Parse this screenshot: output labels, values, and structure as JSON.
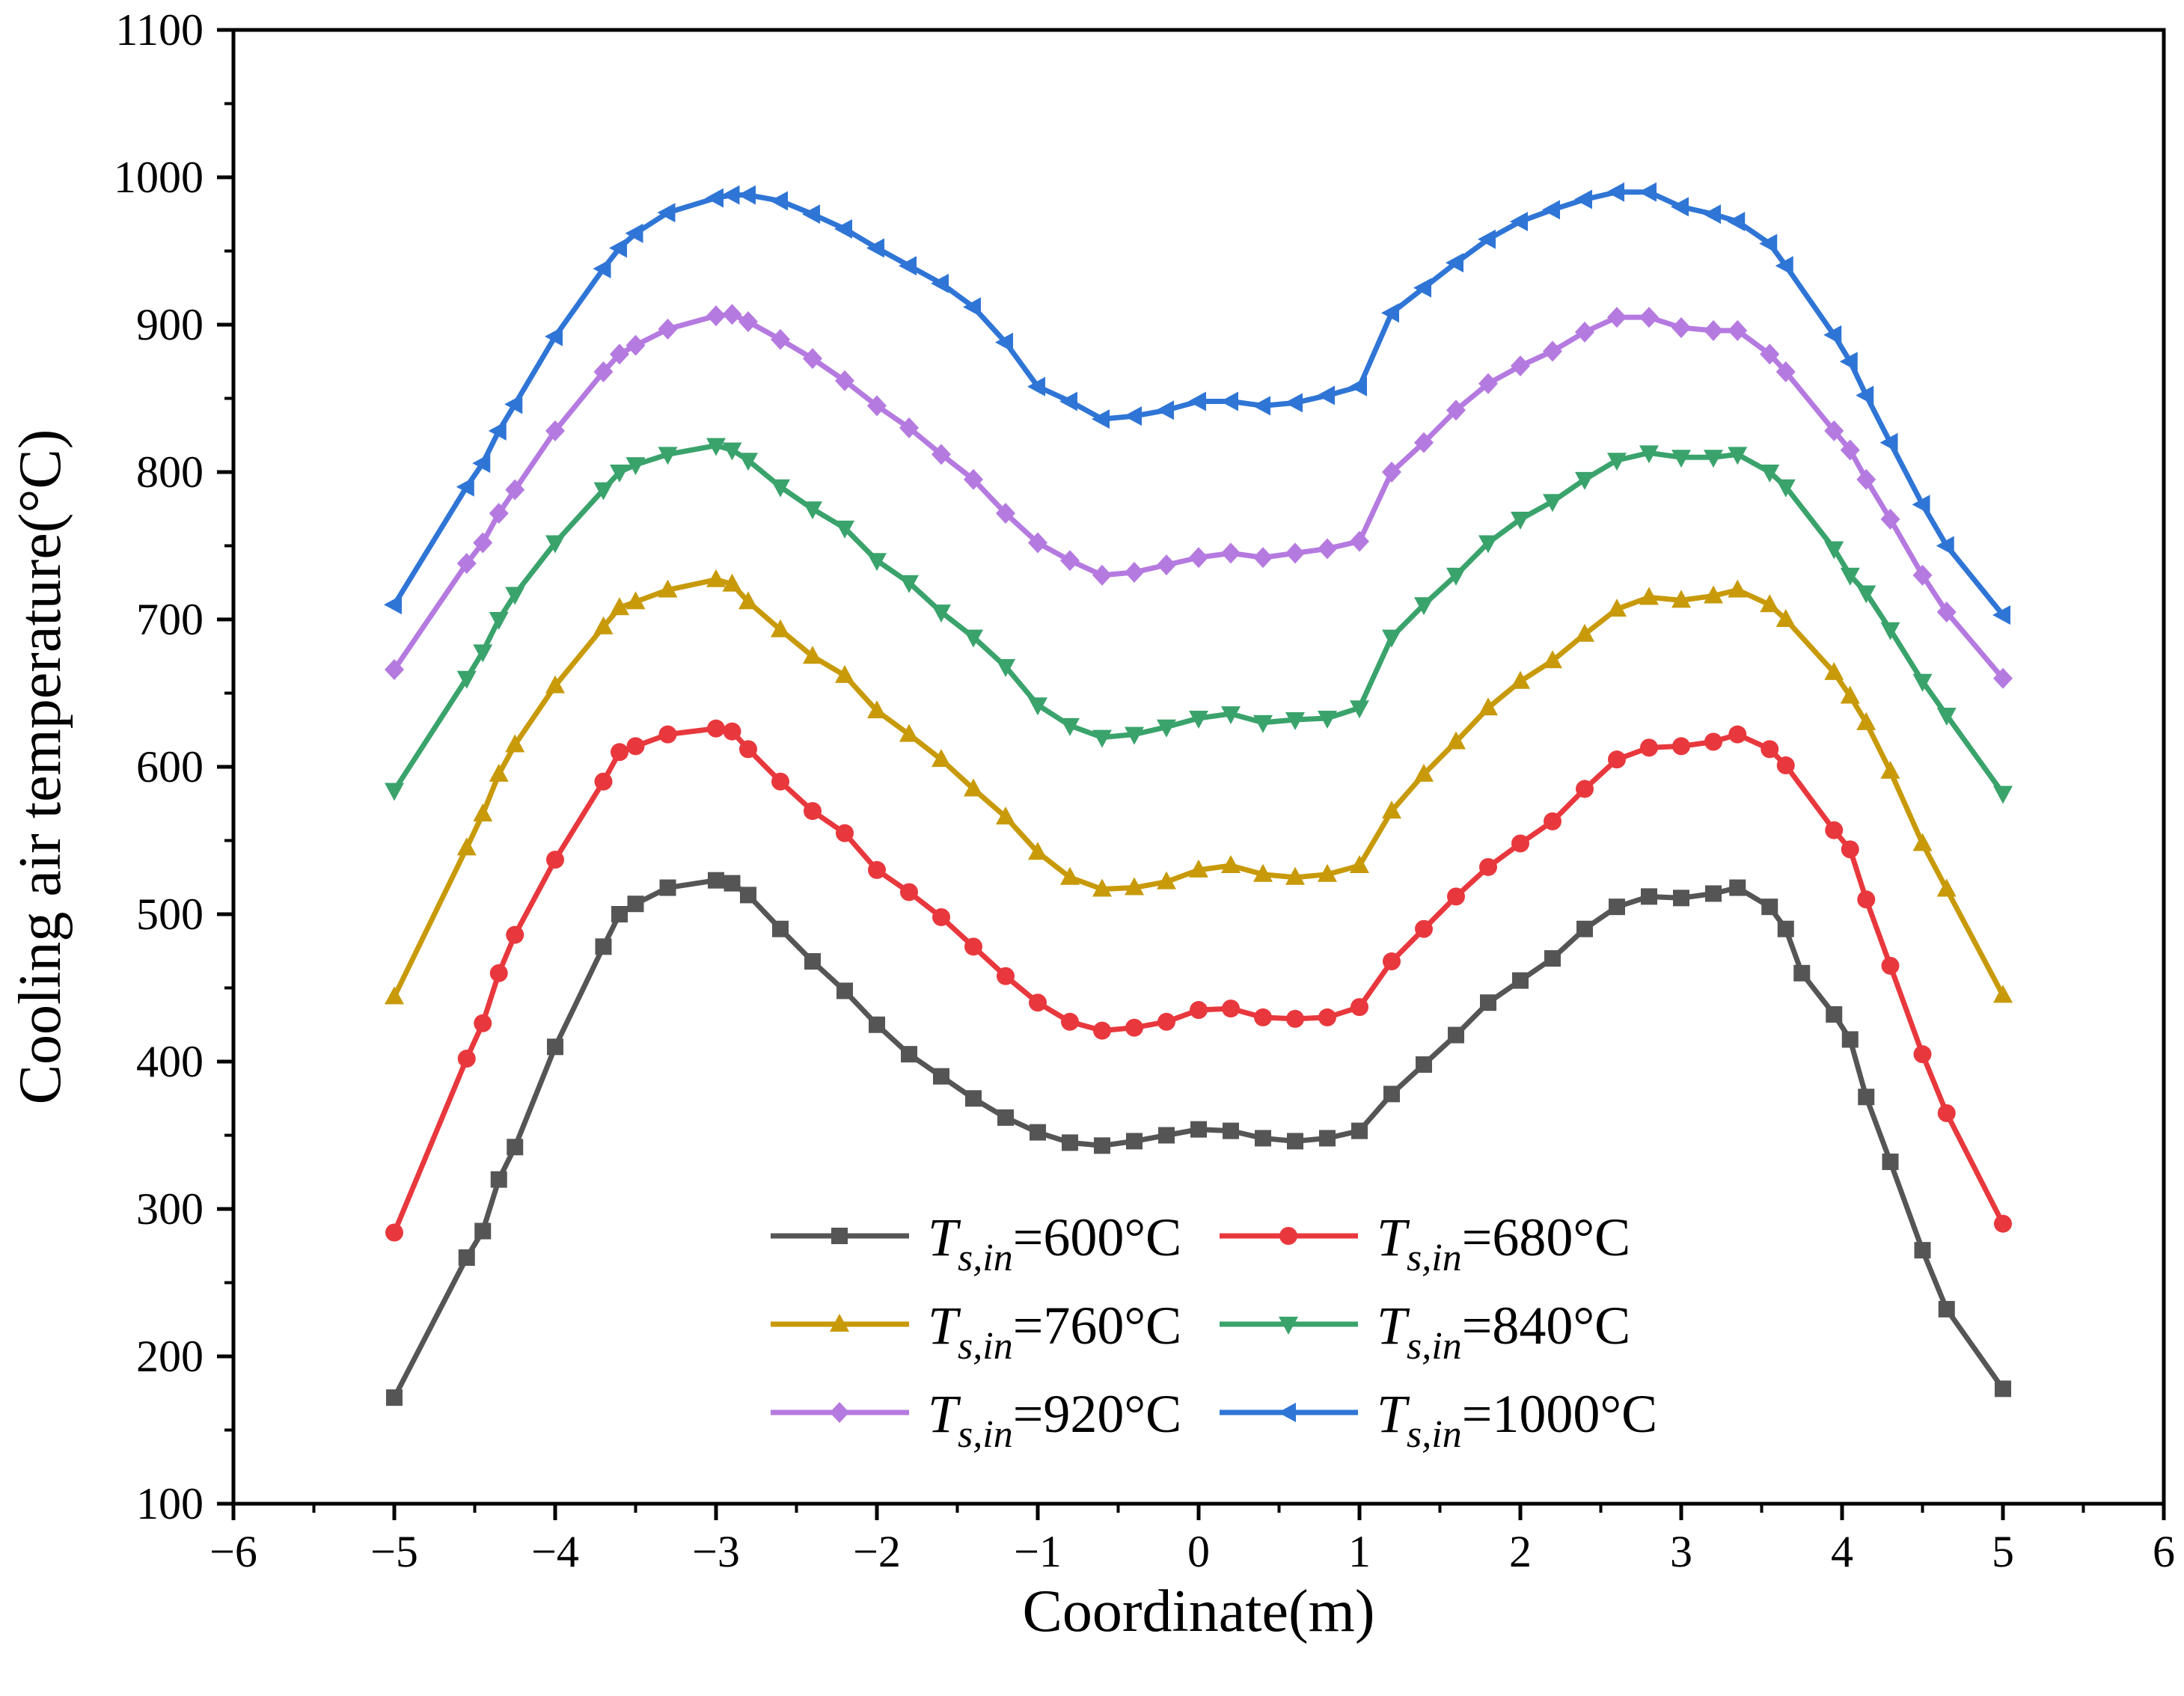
{
  "chart_data": {
    "type": "line",
    "title": "",
    "xlabel": "Coordinate(m)",
    "ylabel": "Cooling air temperature(°C)",
    "xlim": [
      -6,
      6
    ],
    "ylim": [
      100,
      1100
    ],
    "xticks": [
      -6,
      -5,
      -4,
      -3,
      -2,
      -1,
      0,
      1,
      2,
      3,
      4,
      5,
      6
    ],
    "xtick_labels": [
      "−6",
      "−5",
      "−4",
      "−3",
      "−2",
      "−1",
      "0",
      "1",
      "2",
      "3",
      "4",
      "5",
      "6"
    ],
    "yticks": [
      100,
      200,
      300,
      400,
      500,
      600,
      700,
      800,
      900,
      1000,
      1100
    ],
    "ytick_labels": [
      "100",
      "200",
      "300",
      "400",
      "500",
      "600",
      "700",
      "800",
      "900",
      "1000",
      "1100"
    ],
    "legend_position": "lower-center, inside plot, 2 columns",
    "series": [
      {
        "name": "600°C",
        "legend_prefix": "T",
        "legend_subscript": "s,in",
        "legend_value": "=600°C",
        "color": "#555555",
        "marker": "square",
        "x": [
          -5.0,
          -4.55,
          -4.45,
          -4.35,
          -4.25,
          -4.0,
          -3.7,
          -3.6,
          -3.5,
          -3.3,
          -3.0,
          -2.9,
          -2.8,
          -2.6,
          -2.4,
          -2.2,
          -2.0,
          -1.8,
          -1.6,
          -1.4,
          -1.2,
          -1.0,
          -0.8,
          -0.6,
          -0.4,
          -0.2,
          0.0,
          0.2,
          0.4,
          0.6,
          0.8,
          1.0,
          1.2,
          1.4,
          1.6,
          1.8,
          2.0,
          2.2,
          2.4,
          2.6,
          2.8,
          3.0,
          3.2,
          3.35,
          3.55,
          3.65,
          3.75,
          3.95,
          4.05,
          4.15,
          4.3,
          4.5,
          4.65,
          5.0
        ],
        "y": [
          172,
          267,
          285,
          320,
          342,
          410,
          478,
          500,
          507,
          518,
          523,
          521,
          513,
          490,
          468,
          448,
          425,
          405,
          390,
          375,
          362,
          352,
          345,
          343,
          346,
          350,
          354,
          353,
          348,
          346,
          348,
          353,
          378,
          398,
          418,
          440,
          455,
          470,
          490,
          505,
          512,
          511,
          514,
          518,
          505,
          490,
          460,
          432,
          415,
          376,
          332,
          272,
          232,
          178
        ]
      },
      {
        "name": "680°C",
        "legend_prefix": "T",
        "legend_subscript": "s,in",
        "legend_value": "=680°C",
        "color": "#e8383d",
        "marker": "circle",
        "x": [
          -5.0,
          -4.55,
          -4.45,
          -4.35,
          -4.25,
          -4.0,
          -3.7,
          -3.6,
          -3.5,
          -3.3,
          -3.0,
          -2.9,
          -2.8,
          -2.6,
          -2.4,
          -2.2,
          -2.0,
          -1.8,
          -1.6,
          -1.4,
          -1.2,
          -1.0,
          -0.8,
          -0.6,
          -0.4,
          -0.2,
          0.0,
          0.2,
          0.4,
          0.6,
          0.8,
          1.0,
          1.2,
          1.4,
          1.6,
          1.8,
          2.0,
          2.2,
          2.4,
          2.6,
          2.8,
          3.0,
          3.2,
          3.35,
          3.55,
          3.65,
          3.95,
          4.05,
          4.15,
          4.3,
          4.5,
          4.65,
          5.0
        ],
        "y": [
          284,
          402,
          426,
          460,
          486,
          537,
          590,
          610,
          614,
          622,
          626,
          624,
          612,
          590,
          570,
          555,
          530,
          515,
          498,
          478,
          458,
          440,
          427,
          421,
          423,
          427,
          435,
          436,
          430,
          429,
          430,
          437,
          468,
          490,
          512,
          532,
          548,
          563,
          585,
          605,
          613,
          614,
          617,
          622,
          612,
          601,
          557,
          544,
          510,
          465,
          405,
          365,
          290
        ]
      },
      {
        "name": "760°C",
        "legend_prefix": "T",
        "legend_subscript": "s,in",
        "legend_value": "=760°C",
        "color": "#c89a0a",
        "marker": "triangle-up",
        "x": [
          -5.0,
          -4.55,
          -4.45,
          -4.35,
          -4.25,
          -4.0,
          -3.7,
          -3.6,
          -3.5,
          -3.3,
          -3.0,
          -2.9,
          -2.8,
          -2.6,
          -2.4,
          -2.2,
          -2.0,
          -1.8,
          -1.6,
          -1.4,
          -1.2,
          -1.0,
          -0.8,
          -0.6,
          -0.4,
          -0.2,
          0.0,
          0.2,
          0.4,
          0.6,
          0.8,
          1.0,
          1.2,
          1.4,
          1.6,
          1.8,
          2.0,
          2.2,
          2.4,
          2.6,
          2.8,
          3.0,
          3.2,
          3.35,
          3.55,
          3.65,
          3.95,
          4.05,
          4.15,
          4.3,
          4.5,
          4.65,
          5.0
        ],
        "y": [
          444,
          545,
          568,
          595,
          615,
          655,
          695,
          708,
          712,
          720,
          727,
          724,
          712,
          693,
          675,
          662,
          638,
          622,
          605,
          585,
          566,
          542,
          525,
          517,
          518,
          522,
          530,
          533,
          527,
          525,
          527,
          533,
          570,
          595,
          617,
          640,
          658,
          672,
          690,
          707,
          715,
          713,
          716,
          720,
          710,
          700,
          664,
          648,
          630,
          597,
          548,
          517,
          445
        ]
      },
      {
        "name": "840°C",
        "legend_prefix": "T",
        "legend_subscript": "s,in",
        "legend_value": "=840°C",
        "color": "#3aa36c",
        "marker": "triangle-down",
        "x": [
          -5.0,
          -4.55,
          -4.45,
          -4.35,
          -4.25,
          -4.0,
          -3.7,
          -3.6,
          -3.5,
          -3.3,
          -3.0,
          -2.9,
          -2.8,
          -2.6,
          -2.4,
          -2.2,
          -2.0,
          -1.8,
          -1.6,
          -1.4,
          -1.2,
          -1.0,
          -0.8,
          -0.6,
          -0.4,
          -0.2,
          0.0,
          0.2,
          0.4,
          0.6,
          0.8,
          1.0,
          1.2,
          1.4,
          1.6,
          1.8,
          2.0,
          2.2,
          2.4,
          2.6,
          2.8,
          3.0,
          3.2,
          3.35,
          3.55,
          3.65,
          3.95,
          4.05,
          4.15,
          4.3,
          4.5,
          4.65,
          5.0
        ],
        "y": [
          584,
          660,
          678,
          700,
          717,
          752,
          788,
          800,
          805,
          812,
          818,
          815,
          808,
          790,
          775,
          762,
          740,
          725,
          705,
          688,
          668,
          642,
          628,
          620,
          622,
          627,
          633,
          636,
          630,
          632,
          633,
          640,
          688,
          710,
          730,
          752,
          768,
          780,
          795,
          808,
          813,
          810,
          810,
          812,
          800,
          790,
          748,
          730,
          718,
          693,
          658,
          635,
          582
        ]
      },
      {
        "name": "920°C",
        "legend_prefix": "T",
        "legend_subscript": "s,in",
        "legend_value": "=920°C",
        "color": "#b57ae0",
        "marker": "diamond",
        "x": [
          -5.0,
          -4.55,
          -4.45,
          -4.35,
          -4.25,
          -4.0,
          -3.7,
          -3.6,
          -3.5,
          -3.3,
          -3.0,
          -2.9,
          -2.8,
          -2.6,
          -2.4,
          -2.2,
          -2.0,
          -1.8,
          -1.6,
          -1.4,
          -1.2,
          -1.0,
          -0.8,
          -0.6,
          -0.4,
          -0.2,
          0.0,
          0.2,
          0.4,
          0.6,
          0.8,
          1.0,
          1.2,
          1.4,
          1.6,
          1.8,
          2.0,
          2.2,
          2.4,
          2.6,
          2.8,
          3.0,
          3.2,
          3.35,
          3.55,
          3.65,
          3.95,
          4.05,
          4.15,
          4.3,
          4.5,
          4.65,
          5.0
        ],
        "y": [
          666,
          738,
          752,
          772,
          788,
          828,
          868,
          880,
          886,
          897,
          906,
          907,
          902,
          890,
          877,
          862,
          845,
          830,
          812,
          795,
          772,
          752,
          740,
          730,
          732,
          737,
          742,
          745,
          742,
          745,
          748,
          753,
          800,
          820,
          842,
          860,
          872,
          882,
          895,
          905,
          905,
          898,
          896,
          896,
          880,
          868,
          828,
          815,
          795,
          768,
          730,
          705,
          660
        ]
      },
      {
        "name": "1000°C",
        "legend_prefix": "T",
        "legend_subscript": "s,in",
        "legend_value": "=1000°C",
        "color": "#2f75d6",
        "marker": "triangle-left",
        "x": [
          -5.0,
          -4.55,
          -4.45,
          -4.35,
          -4.25,
          -4.0,
          -3.7,
          -3.6,
          -3.5,
          -3.3,
          -3.0,
          -2.9,
          -2.8,
          -2.6,
          -2.4,
          -2.2,
          -2.0,
          -1.8,
          -1.6,
          -1.4,
          -1.2,
          -1.0,
          -0.8,
          -0.6,
          -0.4,
          -0.2,
          0.0,
          0.2,
          0.4,
          0.6,
          0.8,
          1.0,
          1.2,
          1.4,
          1.6,
          1.8,
          2.0,
          2.2,
          2.4,
          2.6,
          2.8,
          3.0,
          3.2,
          3.35,
          3.55,
          3.65,
          3.95,
          4.05,
          4.15,
          4.3,
          4.5,
          4.65,
          5.0
        ],
        "y": [
          710,
          790,
          806,
          828,
          846,
          892,
          938,
          952,
          962,
          976,
          986,
          988,
          988,
          984,
          975,
          965,
          952,
          940,
          928,
          912,
          888,
          858,
          848,
          836,
          838,
          842,
          848,
          848,
          845,
          847,
          852,
          858,
          908,
          925,
          942,
          958,
          970,
          978,
          985,
          990,
          990,
          980,
          975,
          970,
          955,
          940,
          893,
          875,
          852,
          820,
          778,
          750,
          703
        ]
      }
    ]
  }
}
